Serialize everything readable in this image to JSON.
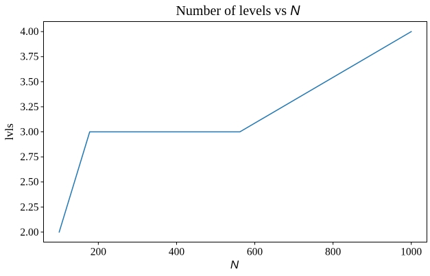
{
  "chart_data": {
    "type": "line",
    "title_prefix": "Number of levels vs ",
    "title_math": "N",
    "xlabel": "N",
    "ylabel": "lvls",
    "xlim": [
      60,
      1040
    ],
    "ylim": [
      1.9,
      4.1
    ],
    "x_ticks": [
      200,
      400,
      600,
      800,
      1000
    ],
    "x_tick_labels": [
      "200",
      "400",
      "600",
      "800",
      "1000"
    ],
    "y_ticks": [
      2.0,
      2.25,
      2.5,
      2.75,
      3.0,
      3.25,
      3.5,
      3.75,
      4.0
    ],
    "y_tick_labels": [
      "2.00",
      "2.25",
      "2.50",
      "2.75",
      "3.00",
      "3.25",
      "3.50",
      "3.75",
      "4.00"
    ],
    "grid": false,
    "series": [
      {
        "color": "#1f77b4",
        "x": [
          100,
          178,
          562,
          1000
        ],
        "y": [
          2.0,
          3.0,
          3.0,
          4.0
        ]
      }
    ]
  }
}
